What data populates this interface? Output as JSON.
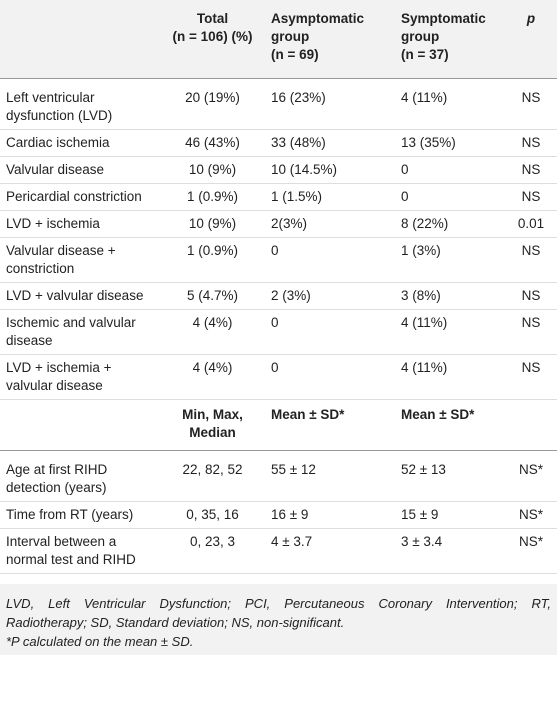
{
  "table": {
    "header": [
      [
        "Total",
        "(n = 106) (%)"
      ],
      [
        "Asymptomatic",
        "group",
        "(n = 69)"
      ],
      [
        "Symptomatic",
        "group",
        "(n = 37)"
      ],
      [
        "p"
      ]
    ],
    "rows": [
      [
        "Left ventricular dysfunction (LVD)",
        "20 (19%)",
        "16 (23%)",
        "4 (11%)",
        "NS"
      ],
      [
        "Cardiac ischemia",
        "46 (43%)",
        "33 (48%)",
        "13 (35%)",
        "NS"
      ],
      [
        "Valvular disease",
        "10 (9%)",
        "10 (14.5%)",
        "0",
        "NS"
      ],
      [
        "Pericardial constriction",
        "1 (0.9%)",
        "1 (1.5%)",
        "0",
        "NS"
      ],
      [
        "LVD + ischemia",
        "10 (9%)",
        "2(3%)",
        "8 (22%)",
        "0.01"
      ],
      [
        "Valvular disease + constriction",
        "1 (0.9%)",
        "0",
        "1 (3%)",
        "NS"
      ],
      [
        "LVD + valvular disease",
        "5 (4.7%)",
        "2 (3%)",
        "3 (8%)",
        "NS"
      ],
      [
        "Ischemic and valvular disease",
        "4 (4%)",
        "0",
        "4 (11%)",
        "NS"
      ],
      [
        "LVD + ischemia + valvular disease",
        "4 (4%)",
        "0",
        "4 (11%)",
        "NS"
      ]
    ],
    "header2": [
      [
        "Min, Max,",
        "Median"
      ],
      [
        "Mean ± SD*"
      ],
      [
        "Mean ± SD*"
      ]
    ],
    "rows2": [
      [
        "Age at first RIHD detection (years)",
        "22, 82, 52",
        "55 ± 12",
        "52 ± 13",
        "NS*"
      ],
      [
        "Time from RT (years)",
        "0, 35, 16",
        "16 ± 9",
        "15 ± 9",
        "NS*"
      ],
      [
        "Interval between a normal test and RIHD",
        "0, 23, 3",
        "4 ± 3.7",
        "3 ± 3.4",
        "NS*"
      ]
    ],
    "footnotes": [
      "LVD, Left Ventricular Dysfunction; PCI, Percutaneous Coronary Intervention; RT, Radiotherapy; SD, Standard deviation; NS, non-significant.",
      "*P calculated on the mean ± SD."
    ]
  }
}
